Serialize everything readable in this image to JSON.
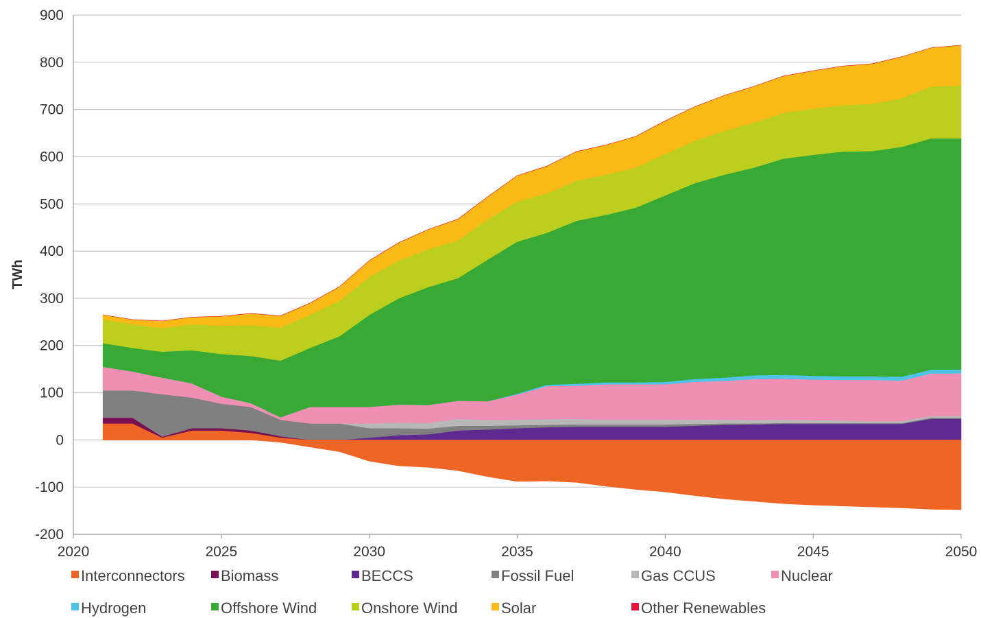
{
  "chart_data": {
    "type": "area",
    "ylabel": "TWh",
    "xlabel": "",
    "title": "",
    "xlim": [
      2020,
      2050
    ],
    "ylim": [
      -200,
      900
    ],
    "xticks": [
      2020,
      2025,
      2030,
      2035,
      2040,
      2045,
      2050
    ],
    "yticks": [
      -200,
      -100,
      0,
      100,
      200,
      300,
      400,
      500,
      600,
      700,
      800,
      900
    ],
    "grid": "horizontal",
    "legend_position": "bottom",
    "x": [
      2021,
      2022,
      2023,
      2024,
      2025,
      2026,
      2027,
      2028,
      2029,
      2030,
      2031,
      2032,
      2033,
      2034,
      2035,
      2036,
      2037,
      2038,
      2039,
      2040,
      2041,
      2042,
      2043,
      2044,
      2045,
      2046,
      2047,
      2048,
      2049,
      2050
    ],
    "negative_series": [
      {
        "name": "Interconnectors",
        "color": "#ef6526",
        "values": [
          0,
          0,
          0,
          0,
          0,
          0,
          -5,
          -15,
          -25,
          -45,
          -55,
          -58,
          -65,
          -78,
          -88,
          -87,
          -90,
          -98,
          -105,
          -110,
          -118,
          -125,
          -130,
          -135,
          -138,
          -140,
          -142,
          -144,
          -147,
          -148
        ]
      }
    ],
    "series": [
      {
        "name": "Interconnectors",
        "color": "#ef6526",
        "values": [
          35,
          35,
          5,
          20,
          20,
          15,
          5,
          0,
          0,
          0,
          0,
          0,
          0,
          0,
          0,
          0,
          0,
          0,
          0,
          0,
          0,
          0,
          0,
          0,
          0,
          0,
          0,
          0,
          0,
          0
        ]
      },
      {
        "name": "Biomass",
        "color": "#7a1054",
        "values": [
          12,
          12,
          2,
          5,
          5,
          5,
          3,
          0,
          0,
          0,
          0,
          0,
          0,
          0,
          0,
          0,
          0,
          0,
          0,
          0,
          0,
          0,
          0,
          0,
          0,
          0,
          0,
          0,
          0,
          0
        ]
      },
      {
        "name": "BECCS",
        "color": "#5e2a90",
        "values": [
          0,
          0,
          0,
          0,
          0,
          0,
          0,
          0,
          0,
          5,
          10,
          12,
          20,
          22,
          25,
          27,
          28,
          28,
          28,
          28,
          30,
          32,
          33,
          34,
          34,
          34,
          34,
          34,
          45,
          45
        ]
      },
      {
        "name": "Fossil Fuel",
        "color": "#808080",
        "values": [
          58,
          58,
          90,
          65,
          52,
          50,
          35,
          35,
          35,
          20,
          15,
          12,
          10,
          8,
          6,
          5,
          5,
          5,
          5,
          5,
          4,
          3,
          2,
          2,
          2,
          2,
          2,
          2,
          2,
          2
        ]
      },
      {
        "name": "Gas CCUS",
        "color": "#b7b7b7",
        "values": [
          0,
          0,
          0,
          0,
          0,
          0,
          0,
          0,
          0,
          10,
          12,
          12,
          15,
          12,
          12,
          12,
          12,
          10,
          10,
          10,
          9,
          8,
          7,
          7,
          6,
          5,
          4,
          4,
          4,
          4
        ]
      },
      {
        "name": "Nuclear",
        "color": "#ef8fb4",
        "values": [
          50,
          40,
          35,
          30,
          15,
          8,
          5,
          35,
          35,
          35,
          38,
          38,
          38,
          40,
          53,
          70,
          70,
          75,
          75,
          75,
          80,
          82,
          87,
          87,
          86,
          86,
          87,
          86,
          90,
          90
        ]
      },
      {
        "name": "Hydrogen",
        "color": "#4dc4e8",
        "values": [
          0,
          0,
          0,
          0,
          0,
          0,
          0,
          0,
          0,
          0,
          0,
          0,
          0,
          0,
          2,
          3,
          4,
          4,
          4,
          5,
          6,
          7,
          8,
          8,
          8,
          8,
          8,
          8,
          8,
          8
        ]
      },
      {
        "name": "Offshore Wind",
        "color": "#39a935",
        "values": [
          50,
          50,
          55,
          70,
          90,
          100,
          120,
          125,
          150,
          195,
          225,
          250,
          260,
          300,
          322,
          322,
          345,
          355,
          370,
          395,
          415,
          430,
          440,
          458,
          468,
          476,
          477,
          487,
          490,
          490
        ]
      },
      {
        "name": "Onshore Wind",
        "color": "#bccf1e",
        "values": [
          50,
          50,
          50,
          55,
          60,
          65,
          70,
          70,
          75,
          80,
          80,
          80,
          80,
          85,
          85,
          83,
          85,
          85,
          85,
          88,
          90,
          93,
          95,
          97,
          98,
          98,
          100,
          103,
          110,
          112
        ]
      },
      {
        "name": "Solar",
        "color": "#fbb917",
        "values": [
          10,
          10,
          15,
          15,
          20,
          25,
          25,
          25,
          30,
          35,
          38,
          42,
          45,
          48,
          55,
          58,
          62,
          63,
          66,
          70,
          72,
          75,
          77,
          78,
          80,
          83,
          85,
          88,
          82,
          85
        ]
      },
      {
        "name": "Other Renewables",
        "color": "#e5123d",
        "values": [
          0,
          0,
          0,
          0,
          0,
          0,
          0,
          0,
          0,
          0,
          0,
          0,
          0,
          0,
          0,
          0,
          0,
          0,
          0,
          0,
          0,
          0,
          0,
          0,
          0,
          0,
          0,
          0,
          0,
          0
        ]
      }
    ],
    "legend": [
      {
        "label": "Interconnectors",
        "color": "#ef6526"
      },
      {
        "label": "Biomass",
        "color": "#7a1054"
      },
      {
        "label": "BECCS",
        "color": "#5e2a90"
      },
      {
        "label": "Fossil Fuel",
        "color": "#808080"
      },
      {
        "label": "Gas CCUS",
        "color": "#b7b7b7"
      },
      {
        "label": "Nuclear",
        "color": "#ef8fb4"
      },
      {
        "label": "Hydrogen",
        "color": "#4dc4e8"
      },
      {
        "label": "Offshore Wind",
        "color": "#39a935"
      },
      {
        "label": "Onshore Wind",
        "color": "#bccf1e"
      },
      {
        "label": "Solar",
        "color": "#fbb917"
      },
      {
        "label": "Other Renewables",
        "color": "#e5123d"
      }
    ]
  }
}
